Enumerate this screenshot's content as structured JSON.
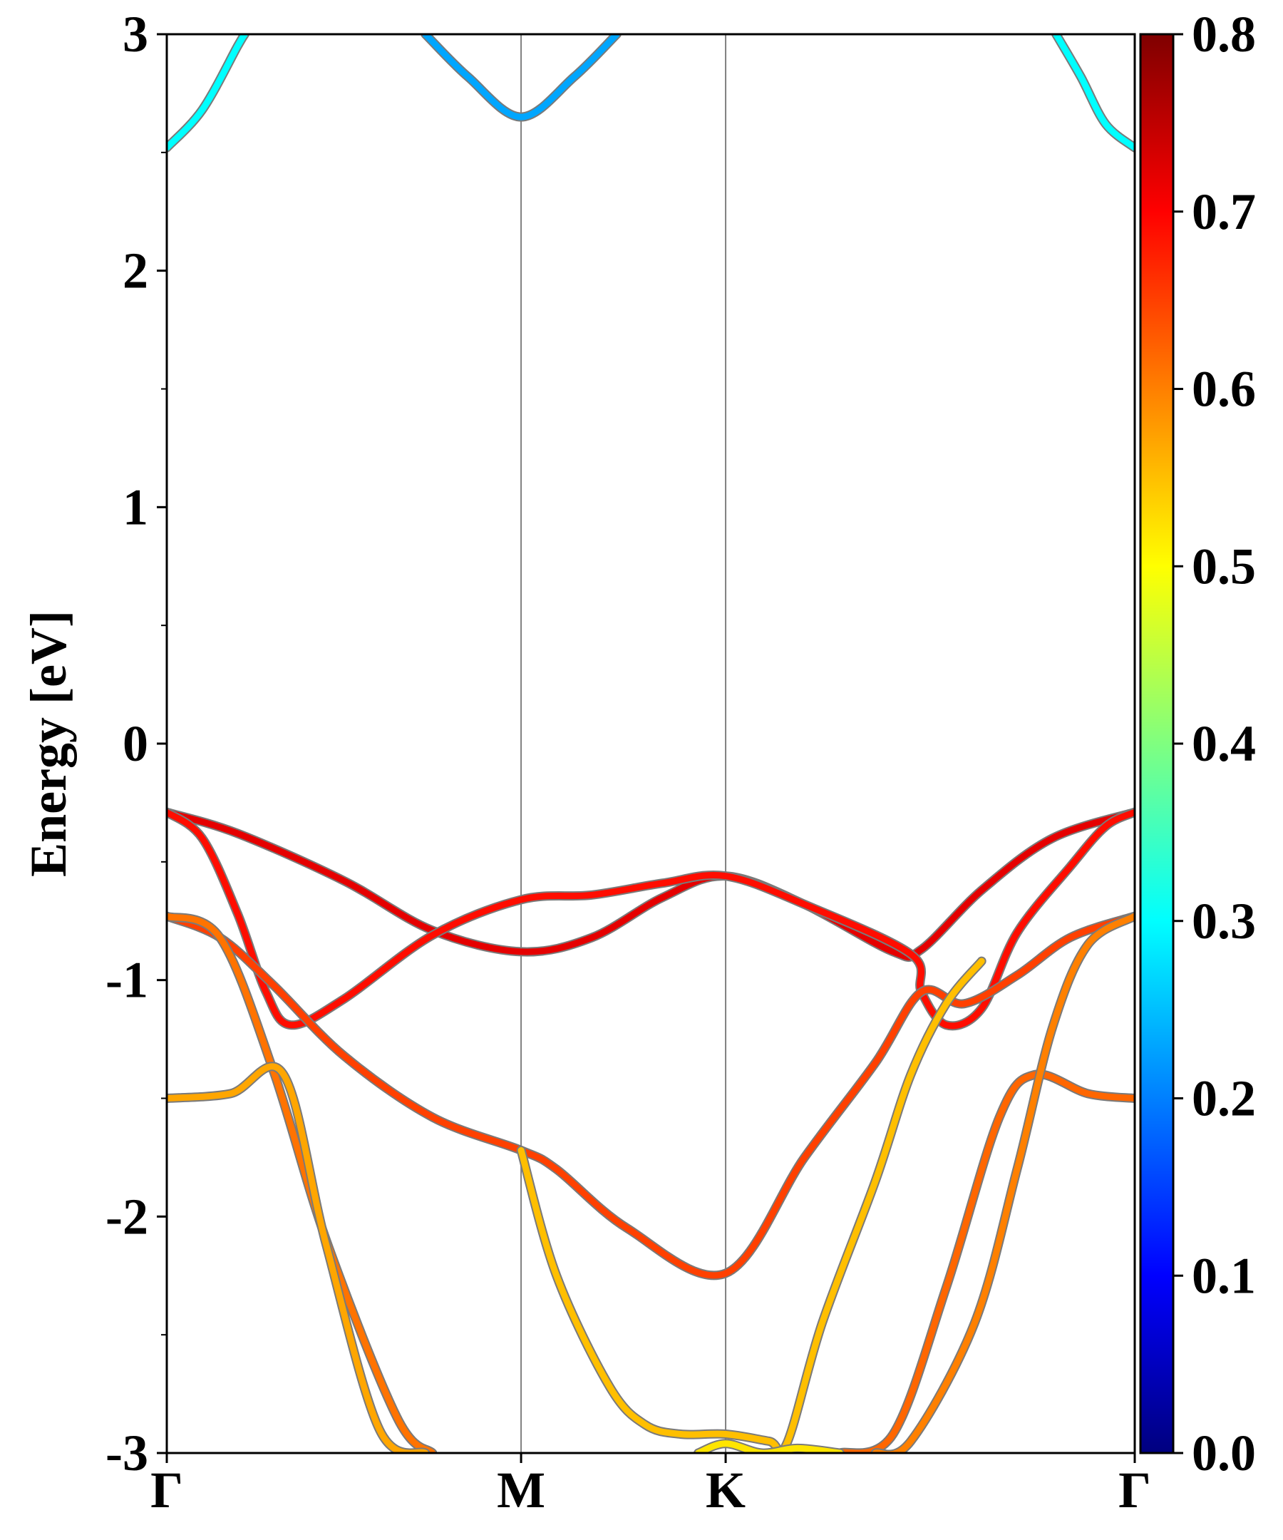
{
  "chart_data": {
    "type": "line",
    "title": "",
    "xlabel": "",
    "ylabel": "Energy [eV]",
    "ylim": [
      -3,
      3
    ],
    "y_ticks": [
      -3,
      -2,
      -1,
      0,
      1,
      2,
      3
    ],
    "y_minor_ticks": [
      -2.5,
      -1.5,
      -0.5,
      0.5,
      1.5,
      2.5
    ],
    "x_ticks": [
      {
        "label": "Γ",
        "k": 0.0
      },
      {
        "label": "M",
        "k": 1.0
      },
      {
        "label": "K",
        "k": 1.5774
      },
      {
        "label": "Γ",
        "k": 2.7321
      }
    ],
    "xlim": [
      0,
      2.7321
    ],
    "vertical_lines_at": [
      1.0,
      1.5774
    ],
    "colorbar": {
      "colormap": "jet",
      "vmin": 0.0,
      "vmax": 0.8,
      "tick_labels": [
        "0.0",
        "0.1",
        "0.2",
        "0.3",
        "0.4",
        "0.5",
        "0.6",
        "0.7",
        "0.8"
      ]
    },
    "series": [
      {
        "weight": 0.3,
        "x": [
          0.0,
          0.1,
          0.2,
          0.22
        ],
        "y": [
          2.52,
          2.68,
          2.95,
          3.0
        ]
      },
      {
        "weight": 0.23,
        "x": [
          0.73,
          0.85,
          1.0,
          1.15,
          1.27
        ],
        "y": [
          3.0,
          2.82,
          2.65,
          2.82,
          3.0
        ]
      },
      {
        "weight": 0.3,
        "x": [
          2.51,
          2.58,
          2.65,
          2.7321
        ],
        "y": [
          3.0,
          2.82,
          2.62,
          2.52
        ]
      },
      {
        "weight": 0.72,
        "x": [
          0.0,
          0.2,
          0.5,
          0.75,
          1.0,
          1.2,
          1.4,
          1.5774,
          1.8,
          2.05,
          2.13,
          2.3,
          2.5,
          2.7321
        ],
        "y": [
          -0.29,
          -0.38,
          -0.58,
          -0.79,
          -0.88,
          -0.82,
          -0.65,
          -0.56,
          -0.68,
          -0.88,
          -0.87,
          -0.62,
          -0.4,
          -0.29
        ]
      },
      {
        "weight": 0.69,
        "x": [
          0.0,
          0.1,
          0.2,
          0.28,
          0.35,
          0.5,
          0.75,
          1.0,
          1.2,
          1.4,
          1.5774,
          1.8,
          2.1,
          2.13,
          2.2,
          2.3,
          2.4,
          2.55,
          2.65,
          2.7321
        ],
        "y": [
          -0.29,
          -0.4,
          -0.72,
          -1.05,
          -1.19,
          -1.08,
          -0.81,
          -0.66,
          -0.64,
          -0.59,
          -0.56,
          -0.68,
          -0.89,
          -1.05,
          -1.19,
          -1.12,
          -0.8,
          -0.52,
          -0.35,
          -0.29
        ]
      },
      {
        "weight": 0.65,
        "x": [
          0.0,
          0.15,
          0.3,
          0.5,
          0.75,
          1.0,
          1.1,
          1.3,
          1.5774,
          1.8,
          2.0,
          2.13,
          2.25,
          2.4,
          2.55,
          2.7321
        ],
        "y": [
          -0.73,
          -0.82,
          -1.02,
          -1.32,
          -1.58,
          -1.72,
          -1.8,
          -2.05,
          -2.24,
          -1.75,
          -1.35,
          -1.05,
          -1.1,
          -0.98,
          -0.82,
          -0.73
        ]
      },
      {
        "weight": 0.61,
        "x": [
          0.0,
          0.15,
          0.3,
          0.45,
          0.65,
          0.75
        ],
        "y": [
          -0.73,
          -0.82,
          -1.38,
          -2.1,
          -2.85,
          -3.0
        ]
      },
      {
        "weight": 0.57,
        "x": [
          0.0,
          0.18,
          0.33,
          0.45,
          0.6,
          0.73
        ],
        "y": [
          -1.5,
          -1.48,
          -1.4,
          -2.12,
          -2.9,
          -3.0
        ]
      },
      {
        "weight": 0.62,
        "x": [
          2.7321,
          2.6,
          2.45,
          2.35,
          2.2,
          2.05,
          1.9
        ],
        "y": [
          -1.5,
          -1.48,
          -1.4,
          -1.58,
          -2.3,
          -2.92,
          -3.0
        ]
      },
      {
        "weight": 0.6,
        "x": [
          2.7321,
          2.6,
          2.5,
          2.4,
          2.28,
          2.1,
          2.0
        ],
        "y": [
          -0.73,
          -0.85,
          -1.2,
          -1.8,
          -2.45,
          -2.95,
          -3.0
        ]
      },
      {
        "weight": 0.55,
        "x": [
          1.0,
          1.1,
          1.25,
          1.35,
          1.45,
          1.5774,
          1.7,
          1.75,
          1.85,
          2.0,
          2.1,
          2.2,
          2.3
        ],
        "y": [
          -1.72,
          -2.25,
          -2.72,
          -2.88,
          -2.92,
          -2.92,
          -2.95,
          -2.96,
          -2.45,
          -1.85,
          -1.4,
          -1.1,
          -0.92
        ]
      },
      {
        "weight": 0.52,
        "x": [
          1.5,
          1.5774,
          1.68,
          1.78,
          1.9
        ],
        "y": [
          -3.0,
          -2.96,
          -3.0,
          -2.98,
          -3.0
        ]
      }
    ]
  }
}
